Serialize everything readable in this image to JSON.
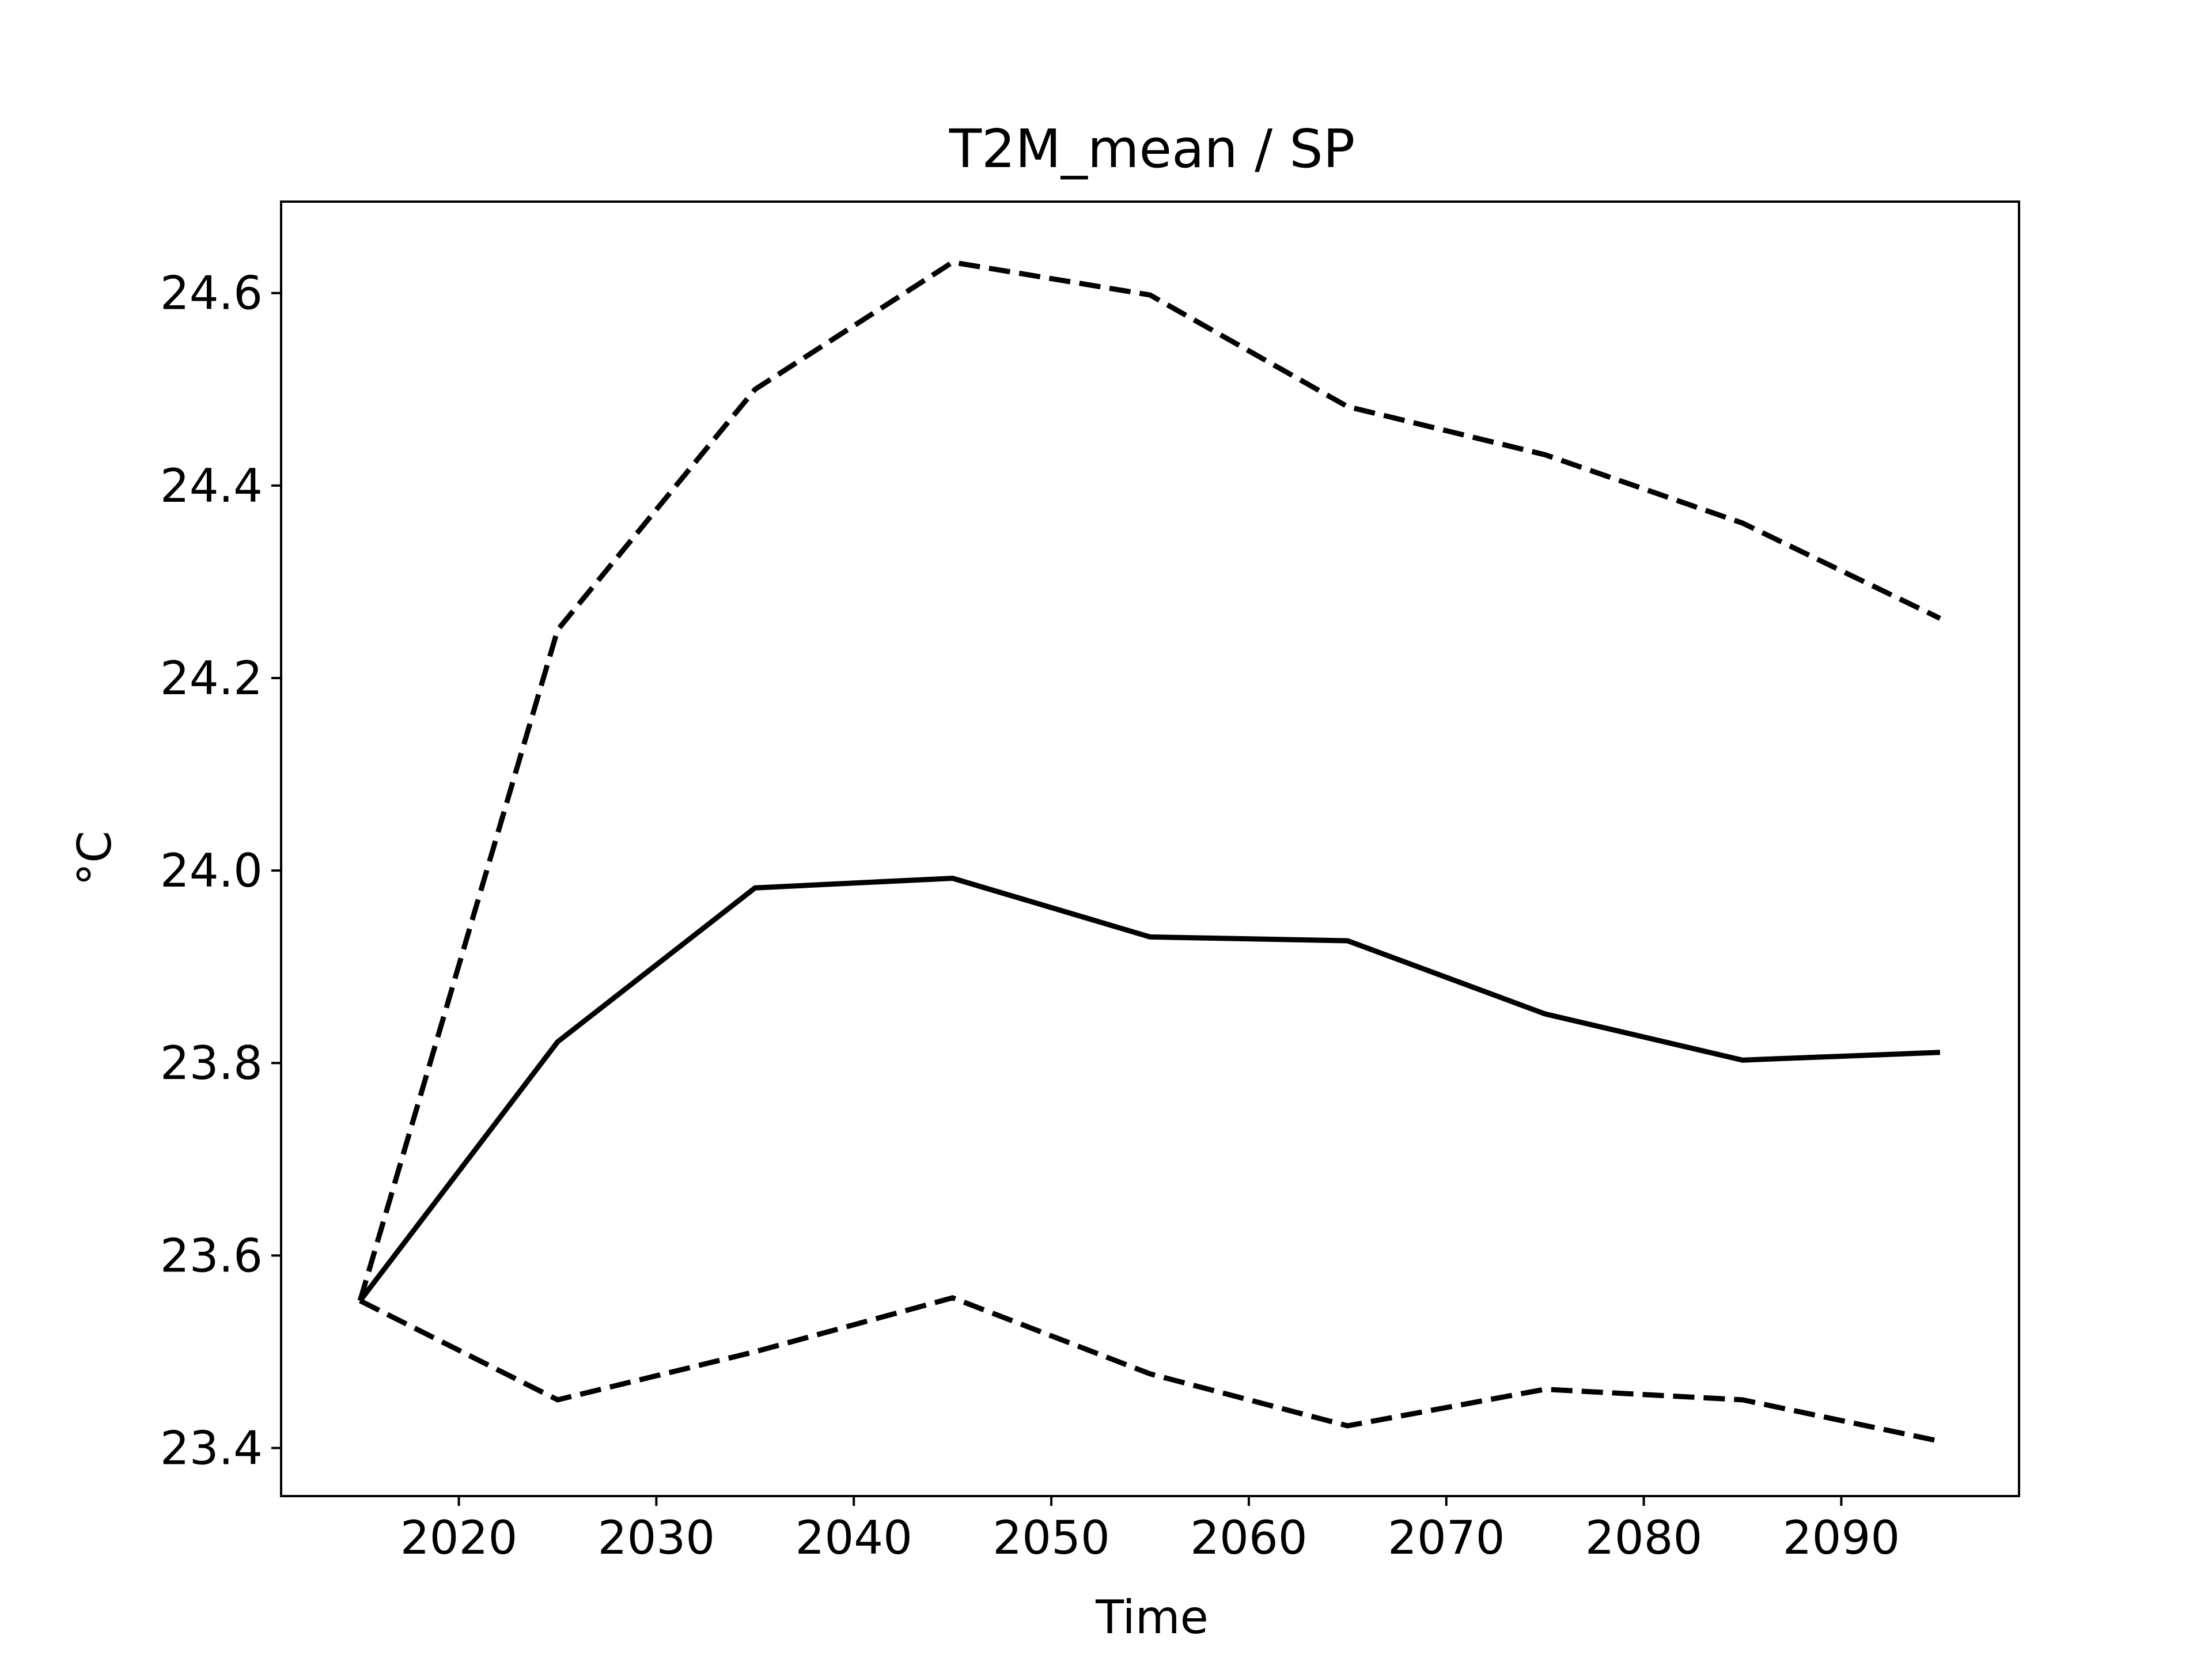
{
  "chart_data": {
    "type": "line",
    "title": "T2M_mean / SP",
    "xlabel": "Time",
    "ylabel": "°C",
    "xlim": [
      2011,
      2099
    ],
    "ylim": [
      23.35,
      24.695
    ],
    "grid": false,
    "xticks": [
      2020,
      2030,
      2040,
      2050,
      2060,
      2070,
      2080,
      2090
    ],
    "xtick_labels": [
      "2020",
      "2030",
      "2040",
      "2050",
      "2060",
      "2070",
      "2080",
      "2090"
    ],
    "yticks": [
      23.4,
      23.6,
      23.8,
      24.0,
      24.2,
      24.4,
      24.6
    ],
    "ytick_labels": [
      "23.4",
      "23.6",
      "23.8",
      "24.0",
      "24.2",
      "24.4",
      "24.6"
    ],
    "x": [
      2015,
      2025,
      2035,
      2045,
      2055,
      2065,
      2075,
      2085,
      2095
    ],
    "series": [
      {
        "style": "solid",
        "color": "#000000",
        "values": [
          23.553,
          23.822,
          23.982,
          23.992,
          23.931,
          23.927,
          23.851,
          23.803,
          23.811
        ]
      },
      {
        "style": "dashed",
        "color": "#000000",
        "values": [
          23.553,
          24.25,
          24.5,
          24.632,
          24.598,
          24.482,
          24.432,
          24.361,
          24.262
        ]
      },
      {
        "style": "dashed",
        "color": "#000000",
        "values": [
          23.553,
          23.45,
          23.5,
          23.556,
          23.477,
          23.423,
          23.461,
          23.45,
          23.407
        ]
      }
    ]
  }
}
